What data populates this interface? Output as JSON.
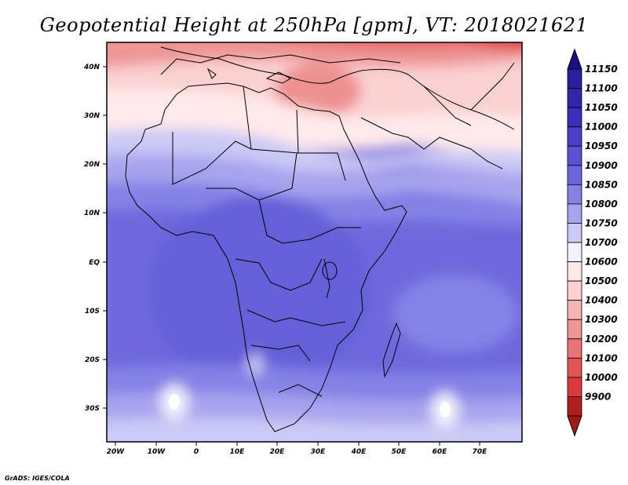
{
  "map": {
    "title": "Geopotential Height at 250hPa [gpm], VT: 2018021621",
    "credit": "GrADS: IGES/COLA",
    "lat_labels": [
      "40N",
      "30N",
      "20N",
      "10N",
      "EQ",
      "10S",
      "20S",
      "30S"
    ],
    "lon_labels": [
      "20W",
      "10W",
      "0",
      "10E",
      "20E",
      "30E",
      "40E",
      "50E",
      "60E",
      "70E"
    ],
    "colorbar": {
      "levels": [
        "11150",
        "11100",
        "11050",
        "11000",
        "10950",
        "10900",
        "10850",
        "10800",
        "10750",
        "10700",
        "10600",
        "10500",
        "10400",
        "10300",
        "10200",
        "10100",
        "10000",
        "9900"
      ],
      "colors": [
        "#2b1f9a",
        "#3326ac",
        "#3a2fbb",
        "#4a3fcb",
        "#5a52d6",
        "#6c66dd",
        "#8582e6",
        "#a7a4ee",
        "#cbc9f5",
        "#f2f1fc",
        "#ffe8e8",
        "#fbd1d1",
        "#f5b5b5",
        "#ee9696",
        "#e87474",
        "#e35555",
        "#db3a3a",
        "#b31f1f"
      ],
      "top_color": "#1a1080",
      "bottom_color": "#a01818"
    }
  }
}
